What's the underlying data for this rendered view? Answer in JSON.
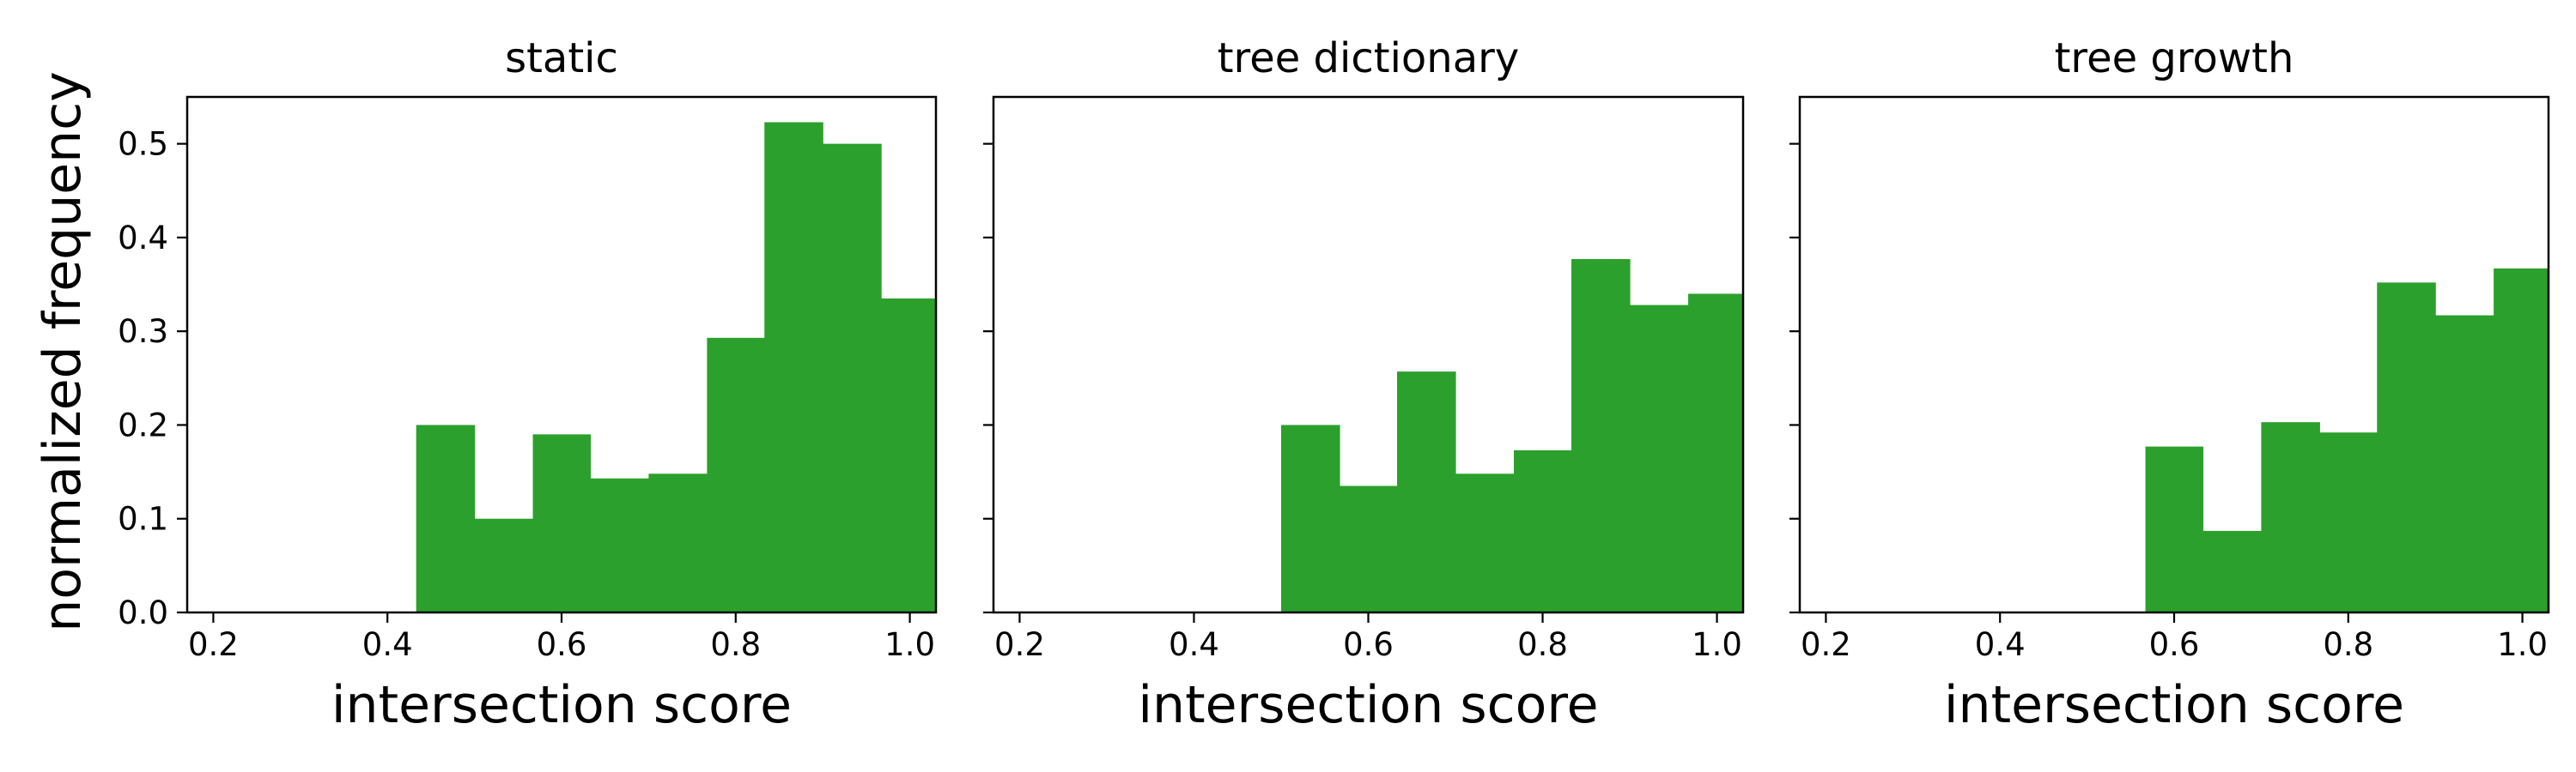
{
  "figure": {
    "ylabel": "normalized frequency",
    "bar_color": "#2ca02c",
    "axis_color": "#000000"
  },
  "chart_data": [
    {
      "type": "bar",
      "title": "static",
      "xlabel": "intersection score",
      "ylabel": "normalized frequency",
      "xlim": [
        0.17,
        1.03
      ],
      "ylim": [
        0.0,
        0.55
      ],
      "xticks": [
        "0.2",
        "0.4",
        "0.6",
        "0.8",
        "1.0"
      ],
      "yticks": [
        "0.0",
        "0.1",
        "0.2",
        "0.3",
        "0.4",
        "0.5"
      ],
      "bins": [
        {
          "start": 0.433,
          "end": 0.5,
          "value": 0.2
        },
        {
          "start": 0.5,
          "end": 0.567,
          "value": 0.1
        },
        {
          "start": 0.567,
          "end": 0.633,
          "value": 0.19
        },
        {
          "start": 0.633,
          "end": 0.7,
          "value": 0.143
        },
        {
          "start": 0.7,
          "end": 0.767,
          "value": 0.148
        },
        {
          "start": 0.767,
          "end": 0.833,
          "value": 0.293
        },
        {
          "start": 0.833,
          "end": 0.9,
          "value": 0.523
        },
        {
          "start": 0.9,
          "end": 0.967,
          "value": 0.5
        },
        {
          "start": 0.967,
          "end": 1.03,
          "value": 0.335
        }
      ]
    },
    {
      "type": "bar",
      "title": "tree dictionary",
      "xlabel": "intersection score",
      "ylabel": "",
      "xlim": [
        0.17,
        1.03
      ],
      "ylim": [
        0.0,
        0.55
      ],
      "xticks": [
        "0.2",
        "0.4",
        "0.6",
        "0.8",
        "1.0"
      ],
      "yticks": [],
      "bins": [
        {
          "start": 0.5,
          "end": 0.567,
          "value": 0.2
        },
        {
          "start": 0.567,
          "end": 0.633,
          "value": 0.135
        },
        {
          "start": 0.633,
          "end": 0.7,
          "value": 0.257
        },
        {
          "start": 0.7,
          "end": 0.767,
          "value": 0.148
        },
        {
          "start": 0.767,
          "end": 0.833,
          "value": 0.173
        },
        {
          "start": 0.833,
          "end": 0.9,
          "value": 0.377
        },
        {
          "start": 0.9,
          "end": 0.967,
          "value": 0.328
        },
        {
          "start": 0.967,
          "end": 1.03,
          "value": 0.34
        }
      ]
    },
    {
      "type": "bar",
      "title": "tree growth",
      "xlabel": "intersection score",
      "ylabel": "",
      "xlim": [
        0.17,
        1.03
      ],
      "ylim": [
        0.0,
        0.55
      ],
      "xticks": [
        "0.2",
        "0.4",
        "0.6",
        "0.8",
        "1.0"
      ],
      "yticks": [],
      "bins": [
        {
          "start": 0.567,
          "end": 0.633,
          "value": 0.177
        },
        {
          "start": 0.633,
          "end": 0.7,
          "value": 0.087
        },
        {
          "start": 0.7,
          "end": 0.767,
          "value": 0.203
        },
        {
          "start": 0.767,
          "end": 0.833,
          "value": 0.192
        },
        {
          "start": 0.833,
          "end": 0.9,
          "value": 0.352
        },
        {
          "start": 0.9,
          "end": 0.967,
          "value": 0.317
        },
        {
          "start": 0.967,
          "end": 1.03,
          "value": 0.367
        }
      ]
    }
  ]
}
